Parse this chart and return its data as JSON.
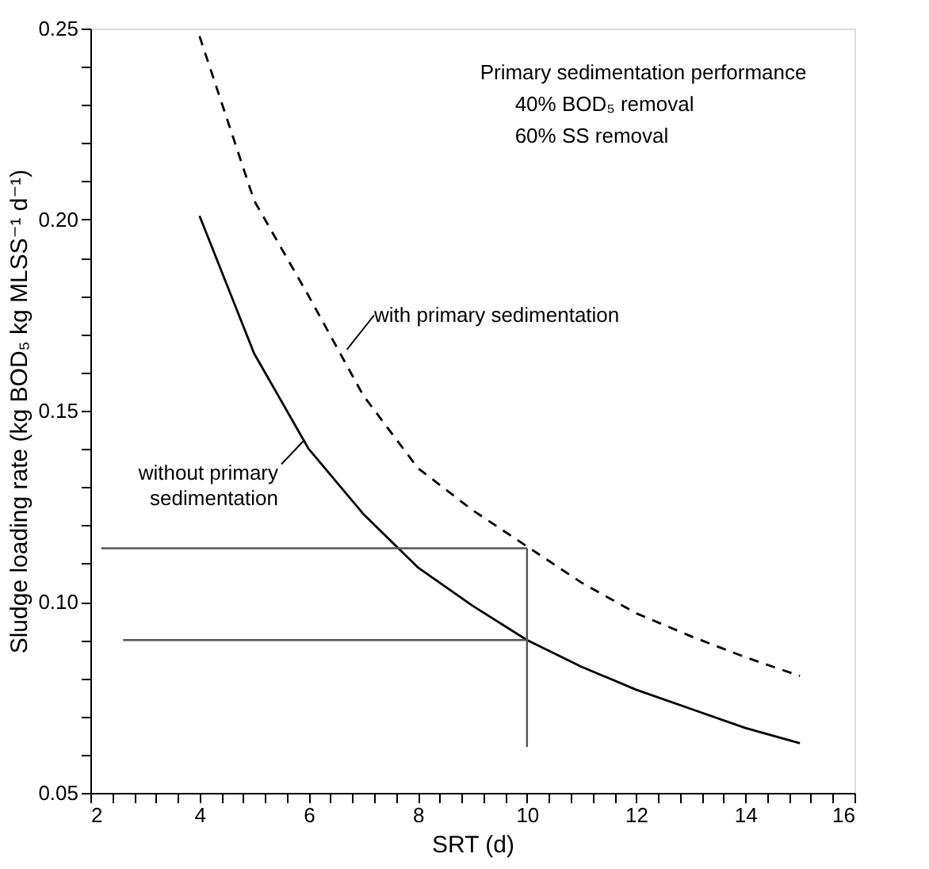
{
  "chart_data": {
    "type": "line",
    "xlabel": "SRT (d)",
    "ylabel": "Sludge loading rate (kg BOD₅ kg MLSS⁻¹ d⁻¹)",
    "xlim": [
      2,
      16
    ],
    "ylim": [
      0.05,
      0.25
    ],
    "xticks": [
      2,
      {
        "value": 2.4,
        "label": null
      },
      {
        "value": 2.8,
        "label": null
      },
      {
        "value": 3.2,
        "label": null
      },
      {
        "value": 3.6,
        "label": null
      },
      4,
      {
        "value": 4.4,
        "label": null
      },
      {
        "value": 4.8,
        "label": null
      },
      {
        "value": 5.2,
        "label": null
      },
      {
        "value": 5.6,
        "label": null
      },
      6,
      {
        "value": 6.4,
        "label": null
      },
      {
        "value": 6.8,
        "label": null
      },
      {
        "value": 7.2,
        "label": null
      },
      {
        "value": 7.6,
        "label": null
      },
      8,
      {
        "value": 8.4,
        "label": null
      },
      {
        "value": 8.8,
        "label": null
      },
      {
        "value": 9.2,
        "label": null
      },
      {
        "value": 9.6,
        "label": null
      },
      10,
      {
        "value": 10.4,
        "label": null
      },
      {
        "value": 10.8,
        "label": null
      },
      {
        "value": 11.2,
        "label": null
      },
      {
        "value": 11.6,
        "label": null
      },
      12,
      {
        "value": 12.4,
        "label": null
      },
      {
        "value": 12.8,
        "label": null
      },
      {
        "value": 13.2,
        "label": null
      },
      {
        "value": 13.6,
        "label": null
      },
      14,
      {
        "value": 14.4,
        "label": null
      },
      {
        "value": 14.8,
        "label": null
      },
      {
        "value": 15.2,
        "label": null
      },
      {
        "value": 15.6,
        "label": null
      },
      16
    ],
    "yticks": [
      {
        "value": 0.05,
        "label": "0.05"
      },
      {
        "value": 0.06,
        "label": null
      },
      {
        "value": 0.07,
        "label": null
      },
      {
        "value": 0.08,
        "label": null
      },
      {
        "value": 0.09,
        "label": null
      },
      {
        "value": 0.1,
        "label": "0.10"
      },
      {
        "value": 0.11,
        "label": null
      },
      {
        "value": 0.12,
        "label": null
      },
      {
        "value": 0.13,
        "label": null
      },
      {
        "value": 0.14,
        "label": null
      },
      {
        "value": 0.15,
        "label": "0.15"
      },
      {
        "value": 0.16,
        "label": null
      },
      {
        "value": 0.17,
        "label": null
      },
      {
        "value": 0.18,
        "label": null
      },
      {
        "value": 0.19,
        "label": null
      },
      {
        "value": 0.2,
        "label": "0.20"
      },
      {
        "value": 0.21,
        "label": null
      },
      {
        "value": 0.22,
        "label": null
      },
      {
        "value": 0.23,
        "label": null
      },
      {
        "value": 0.24,
        "label": null
      },
      {
        "value": 0.25,
        "label": "0.25"
      }
    ],
    "grid": false,
    "marker": "none",
    "series": [
      {
        "color": "#000000",
        "line_style": "solid",
        "x": [
          4,
          5,
          6,
          7,
          8,
          9,
          10,
          11,
          12,
          13,
          14,
          15
        ],
        "values": [
          0.201,
          0.165,
          0.14,
          0.123,
          0.109,
          0.099,
          0.09,
          0.083,
          0.077,
          0.072,
          0.067,
          0.063
        ]
      },
      {
        "color": "#000000",
        "line_style": "dashed",
        "x": [
          4,
          5,
          6,
          7,
          8,
          9,
          10,
          11,
          12,
          13,
          14,
          15
        ],
        "values": [
          0.248,
          0.205,
          0.18,
          0.154,
          0.135,
          0.124,
          0.1145,
          0.105,
          0.097,
          0.091,
          0.0855,
          0.0806
        ]
      },
      {
        "color": "#555555",
        "line_style": "solid",
        "x": [
          2.2,
          10
        ],
        "values": [
          0.114,
          0.114
        ]
      },
      {
        "color": "#555555",
        "line_style": "solid",
        "x": [
          2.6,
          10
        ],
        "values": [
          0.09,
          0.09
        ]
      },
      {
        "color": "#555555",
        "line_style": "solid",
        "x": [
          10,
          10
        ],
        "values": [
          0.062,
          0.114
        ]
      }
    ],
    "annotations": [
      "Primary sedimentation performance",
      "40% BOD₅ removal",
      "60% SS removal",
      {
        "text": "with primary sedimentation",
        "x": 6.7,
        "y": 0.166
      },
      {
        "text": "without primary sedimentation",
        "x": 5.9,
        "y": 0.142
      }
    ]
  }
}
